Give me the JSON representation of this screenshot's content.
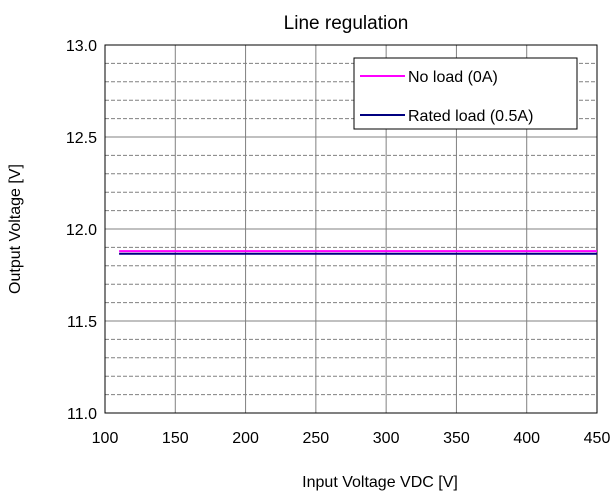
{
  "chart_data": {
    "type": "line",
    "title": "Line regulation",
    "xlabel": "Input Voltage VDC [V]",
    "ylabel": "Output Voltage [V]",
    "xlim": [
      100,
      450
    ],
    "ylim": [
      11.0,
      13.0
    ],
    "x_ticks": [
      100,
      150,
      200,
      250,
      300,
      350,
      400,
      450
    ],
    "x_tick_labels": [
      "100",
      "150",
      "200",
      "250",
      "300",
      "350",
      "400",
      "450"
    ],
    "y_ticks": [
      11.0,
      11.5,
      12.0,
      12.5,
      13.0
    ],
    "y_tick_labels": [
      "11.0",
      "11.5",
      "12.0",
      "12.5",
      "13.0"
    ],
    "grid": true,
    "legend_position": "top-right",
    "series": [
      {
        "name": "No load (0A)",
        "color": "#ff00ff",
        "x": [
          110,
          450
        ],
        "y": [
          11.88,
          11.88
        ]
      },
      {
        "name": "Rated load (0.5A)",
        "color": "#000080",
        "x": [
          110,
          450
        ],
        "y": [
          11.865,
          11.865
        ]
      }
    ]
  }
}
